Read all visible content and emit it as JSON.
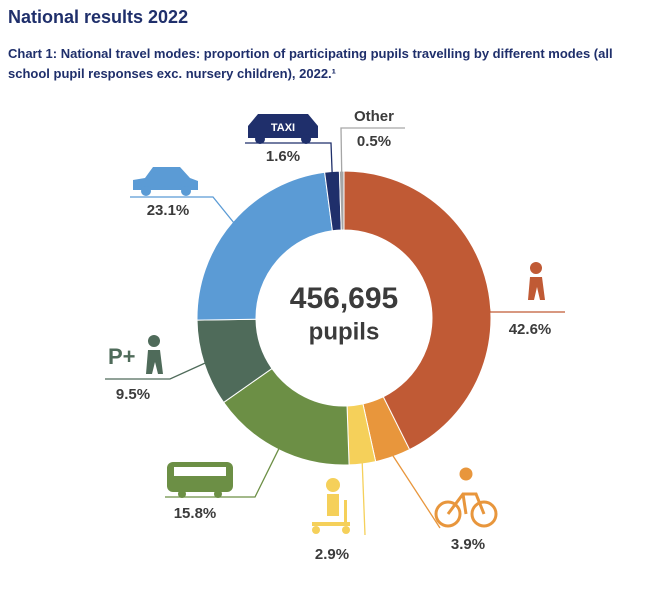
{
  "chart_data": {
    "type": "donut",
    "title": "National results 2022",
    "subtitle": "Chart 1: National travel modes: proportion of participating pupils travelling by different modes (all school pupil responses exc. nursery children), 2022.¹",
    "center_label": "456,695",
    "center_sublabel": "pupils",
    "categories": [
      null,
      null,
      null,
      null,
      null,
      null,
      null,
      "Other"
    ],
    "values": [
      42.6,
      3.9,
      2.9,
      15.8,
      9.5,
      23.1,
      1.6,
      0.5
    ],
    "value_labels": [
      "42.6%",
      "3.9%",
      "2.9%",
      "15.8%",
      "9.5%",
      "23.1%",
      "1.6%",
      "0.5%"
    ],
    "colors": [
      "#c05a35",
      "#e8963c",
      "#f5d05a",
      "#6c8f45",
      "#4f6b5a",
      "#5b9bd5",
      "#1f2f6b",
      "#a6a6a6"
    ],
    "annotations": [
      "TAXI",
      "P+"
    ]
  }
}
